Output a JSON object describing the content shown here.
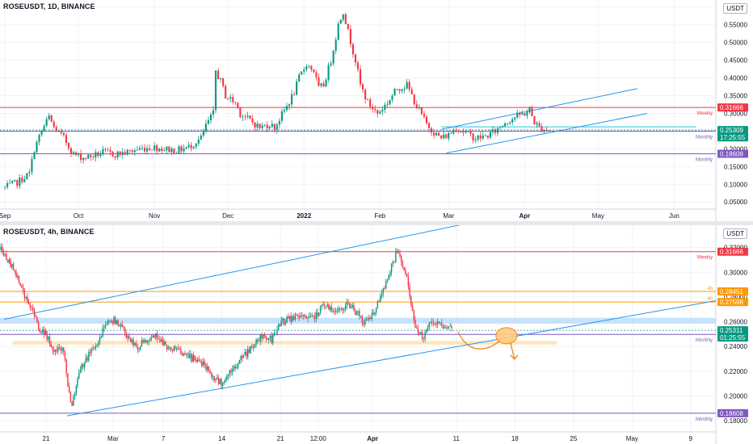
{
  "charts": [
    {
      "id": "top",
      "title": "ROSEUSDT, 1D, BINANCE",
      "currency": "USDT",
      "chart_data": {
        "type": "candlestick",
        "timeframe": "1D",
        "y_ticks": [
          "0.60000",
          "0.55000",
          "0.50000",
          "0.45000",
          "0.40000",
          "0.35000",
          "0.30000",
          "0.25000",
          "0.20000",
          "0.15000",
          "0.10000",
          "0.05000"
        ],
        "y_tick_values": [
          0.6,
          0.55,
          0.5,
          0.45,
          0.4,
          0.35,
          0.3,
          0.25,
          0.2,
          0.15,
          0.1,
          0.05
        ],
        "ylim": [
          0.03,
          0.62
        ],
        "x_ticks": [
          "Sep",
          "Oct",
          "Nov",
          "Dec",
          "2022",
          "Feb",
          "Mar",
          "Apr",
          "May",
          "Jun"
        ],
        "x_tick_days": [
          0,
          30,
          61,
          91,
          122,
          153,
          181,
          212,
          242,
          273
        ],
        "xlim": [
          -2,
          290
        ],
        "close_path": [
          [
            0,
            0.09
          ],
          [
            5,
            0.105
          ],
          [
            10,
            0.13
          ],
          [
            12,
            0.2
          ],
          [
            15,
            0.25
          ],
          [
            18,
            0.29
          ],
          [
            20,
            0.26
          ],
          [
            24,
            0.23
          ],
          [
            28,
            0.185
          ],
          [
            32,
            0.175
          ],
          [
            36,
            0.18
          ],
          [
            40,
            0.19
          ],
          [
            45,
            0.185
          ],
          [
            50,
            0.19
          ],
          [
            55,
            0.2
          ],
          [
            60,
            0.205
          ],
          [
            65,
            0.2
          ],
          [
            70,
            0.195
          ],
          [
            75,
            0.205
          ],
          [
            80,
            0.23
          ],
          [
            82,
            0.265
          ],
          [
            85,
            0.3
          ],
          [
            86,
            0.42
          ],
          [
            88,
            0.39
          ],
          [
            90,
            0.35
          ],
          [
            94,
            0.33
          ],
          [
            96,
            0.3
          ],
          [
            100,
            0.28
          ],
          [
            104,
            0.26
          ],
          [
            108,
            0.27
          ],
          [
            110,
            0.26
          ],
          [
            115,
            0.32
          ],
          [
            118,
            0.36
          ],
          [
            120,
            0.4
          ],
          [
            123,
            0.44
          ],
          [
            126,
            0.42
          ],
          [
            128,
            0.37
          ],
          [
            130,
            0.38
          ],
          [
            133,
            0.45
          ],
          [
            136,
            0.55
          ],
          [
            138,
            0.59
          ],
          [
            140,
            0.53
          ],
          [
            143,
            0.45
          ],
          [
            145,
            0.38
          ],
          [
            148,
            0.33
          ],
          [
            152,
            0.3
          ],
          [
            156,
            0.33
          ],
          [
            160,
            0.37
          ],
          [
            164,
            0.38
          ],
          [
            168,
            0.32
          ],
          [
            172,
            0.27
          ],
          [
            176,
            0.24
          ],
          [
            178,
            0.23
          ],
          [
            181,
            0.24
          ],
          [
            184,
            0.26
          ],
          [
            188,
            0.245
          ],
          [
            192,
            0.23
          ],
          [
            196,
            0.235
          ],
          [
            200,
            0.25
          ],
          [
            204,
            0.275
          ],
          [
            208,
            0.29
          ],
          [
            212,
            0.3
          ],
          [
            214,
            0.31
          ],
          [
            216,
            0.275
          ],
          [
            218,
            0.26
          ],
          [
            222,
            0.253
          ]
        ],
        "last_close": 0.25309,
        "levels": [
          {
            "value": 0.31666,
            "label": "0.31666",
            "name": "Weekly",
            "color": "#f23645"
          },
          {
            "value": 0.24978,
            "label": "0.24978",
            "name": "Monthly",
            "color": "#7e57c2"
          },
          {
            "value": 0.18608,
            "label": "0.18608",
            "name": "Monthly",
            "color": "#7e57c2"
          }
        ],
        "current_price": {
          "label": "0.25309",
          "countdown": "17:25:55",
          "color": "#089981"
        },
        "channel": {
          "upper": [
            [
              178,
              0.255
            ],
            [
              258,
              0.37
            ]
          ],
          "lower": [
            [
              180,
              0.188
            ],
            [
              262,
              0.3
            ]
          ]
        },
        "trend_color": "#2196f3",
        "horizontal_ray": {
          "value": 0.262,
          "from_day": 178,
          "to_day": 282,
          "color": "#26c6da"
        }
      }
    },
    {
      "id": "bottom",
      "title": "ROSEUSDT, 4h, BINANCE",
      "currency": "USDT",
      "chart_data": {
        "type": "candlestick",
        "timeframe": "4h",
        "y_ticks": [
          "0.32000",
          "0.30000",
          "0.28000",
          "0.26000",
          "0.24000",
          "0.22000",
          "0.20000",
          "0.18000"
        ],
        "y_tick_values": [
          0.32,
          0.3,
          0.28,
          0.26,
          0.24,
          0.22,
          0.2,
          0.18
        ],
        "ylim": [
          0.171,
          0.338
        ],
        "x_ticks": [
          "21",
          "Mar",
          "7",
          "14",
          "21",
          "12:00",
          "Apr",
          "11",
          "18",
          "25",
          "May",
          "9"
        ],
        "x_tick_days": [
          0,
          8,
          14,
          21,
          28,
          32.5,
          39,
          49,
          56,
          63,
          70,
          77
        ],
        "xlim": [
          -5.5,
          80
        ],
        "close_path": [
          [
            -5.4,
            0.318
          ],
          [
            -4.5,
            0.31
          ],
          [
            -3.5,
            0.298
          ],
          [
            -2.5,
            0.28
          ],
          [
            -1.5,
            0.268
          ],
          [
            -1,
            0.255
          ],
          [
            0,
            0.25
          ],
          [
            1,
            0.235
          ],
          [
            2,
            0.24
          ],
          [
            3,
            0.19
          ],
          [
            4,
            0.22
          ],
          [
            5,
            0.232
          ],
          [
            6,
            0.24
          ],
          [
            7,
            0.258
          ],
          [
            8,
            0.262
          ],
          [
            9,
            0.255
          ],
          [
            10,
            0.245
          ],
          [
            11,
            0.24
          ],
          [
            12,
            0.245
          ],
          [
            13,
            0.25
          ],
          [
            14,
            0.242
          ],
          [
            15,
            0.238
          ],
          [
            17,
            0.232
          ],
          [
            19,
            0.225
          ],
          [
            20,
            0.215
          ],
          [
            21,
            0.21
          ],
          [
            22,
            0.22
          ],
          [
            24,
            0.235
          ],
          [
            26,
            0.25
          ],
          [
            27,
            0.245
          ],
          [
            28,
            0.26
          ],
          [
            29,
            0.262
          ],
          [
            31,
            0.265
          ],
          [
            32,
            0.262
          ],
          [
            33,
            0.275
          ],
          [
            34,
            0.27
          ],
          [
            35,
            0.27
          ],
          [
            36,
            0.275
          ],
          [
            37,
            0.268
          ],
          [
            38,
            0.26
          ],
          [
            39,
            0.265
          ],
          [
            40,
            0.28
          ],
          [
            41,
            0.3
          ],
          [
            42,
            0.318
          ],
          [
            43,
            0.3
          ],
          [
            44,
            0.258
          ],
          [
            45,
            0.247
          ],
          [
            46,
            0.26
          ],
          [
            47,
            0.258
          ],
          [
            48,
            0.255
          ],
          [
            48.5,
            0.253
          ]
        ],
        "last_close": 0.25311,
        "levels": [
          {
            "value": 0.31666,
            "label": "0.31666",
            "name": "Weekly",
            "color": "#f23645"
          },
          {
            "value": 0.28451,
            "label": "0.28451",
            "name": "4h",
            "color": "#ff9800"
          },
          {
            "value": 0.27598,
            "label": "0.27598",
            "name": "4h",
            "color": "#ff9800"
          },
          {
            "value": 0.24978,
            "label": "0.24978",
            "name": "Monthly",
            "color": "#7e57c2"
          },
          {
            "value": 0.18608,
            "label": "0.18608",
            "name": "Monthly",
            "color": "#7e57c2"
          }
        ],
        "current_price": {
          "label": "0.25311",
          "countdown": "01:25:55",
          "color": "#089981"
        },
        "zones": [
          {
            "from": 0.2585,
            "to": 0.2632,
            "color": "#bbdefb",
            "from_day": -5.5,
            "to_day": 80
          },
          {
            "from": 0.2415,
            "to": 0.2445,
            "color": "#ffe0b2",
            "from_day": -4,
            "to_day": 61
          }
        ],
        "channel": {
          "upper": [
            [
              -5,
              0.262
            ],
            [
              65,
              0.36
            ]
          ],
          "lower": [
            [
              2.5,
              0.184
            ],
            [
              80,
              0.277
            ]
          ]
        },
        "trend_color": "#2196f3",
        "projection": {
          "color": "#f57c00"
        }
      }
    }
  ],
  "colors": {
    "up": "#089981",
    "down": "#f23645",
    "grid": "#f0f3fa",
    "axis_text": "#131722"
  }
}
